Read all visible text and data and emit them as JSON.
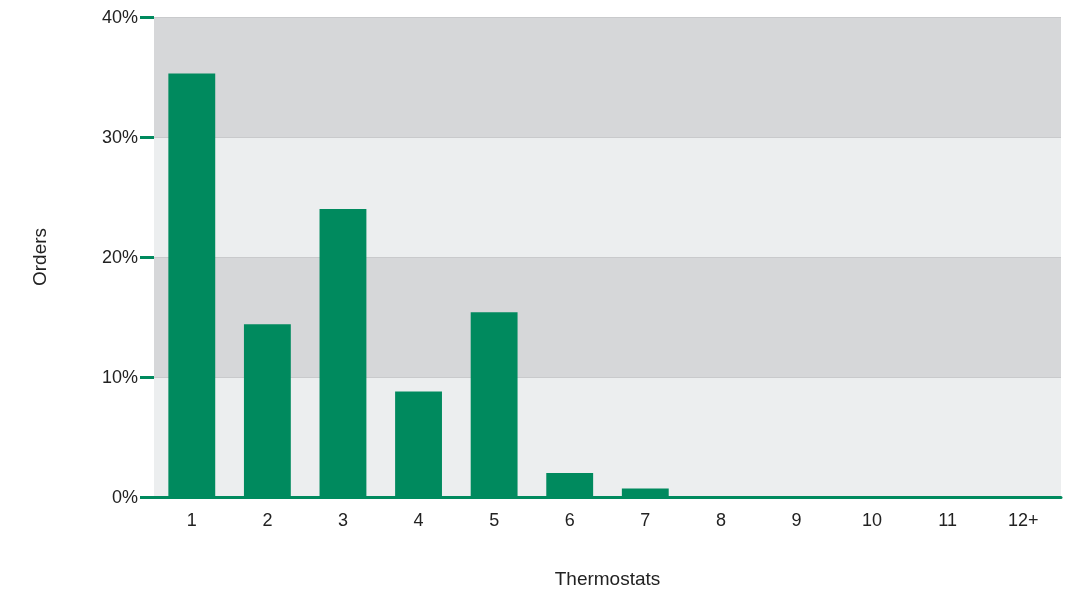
{
  "chart_data": {
    "type": "bar",
    "xlabel": "Thermostats",
    "ylabel": "Orders",
    "categories": [
      "1",
      "2",
      "3",
      "4",
      "5",
      "6",
      "7",
      "8",
      "9",
      "10",
      "11",
      "12+"
    ],
    "values": [
      35.3,
      14.4,
      24.0,
      8.8,
      15.4,
      2.0,
      0.7,
      0,
      0,
      0,
      0,
      0
    ],
    "color": "#008a5e",
    "ylim": [
      0,
      40
    ],
    "yticks": [
      {
        "value": 0,
        "label": "0%"
      },
      {
        "value": 10,
        "label": "10%"
      },
      {
        "value": 20,
        "label": "20%"
      },
      {
        "value": 30,
        "label": "30%"
      },
      {
        "value": 40,
        "label": "40%"
      }
    ],
    "grid": "y"
  }
}
